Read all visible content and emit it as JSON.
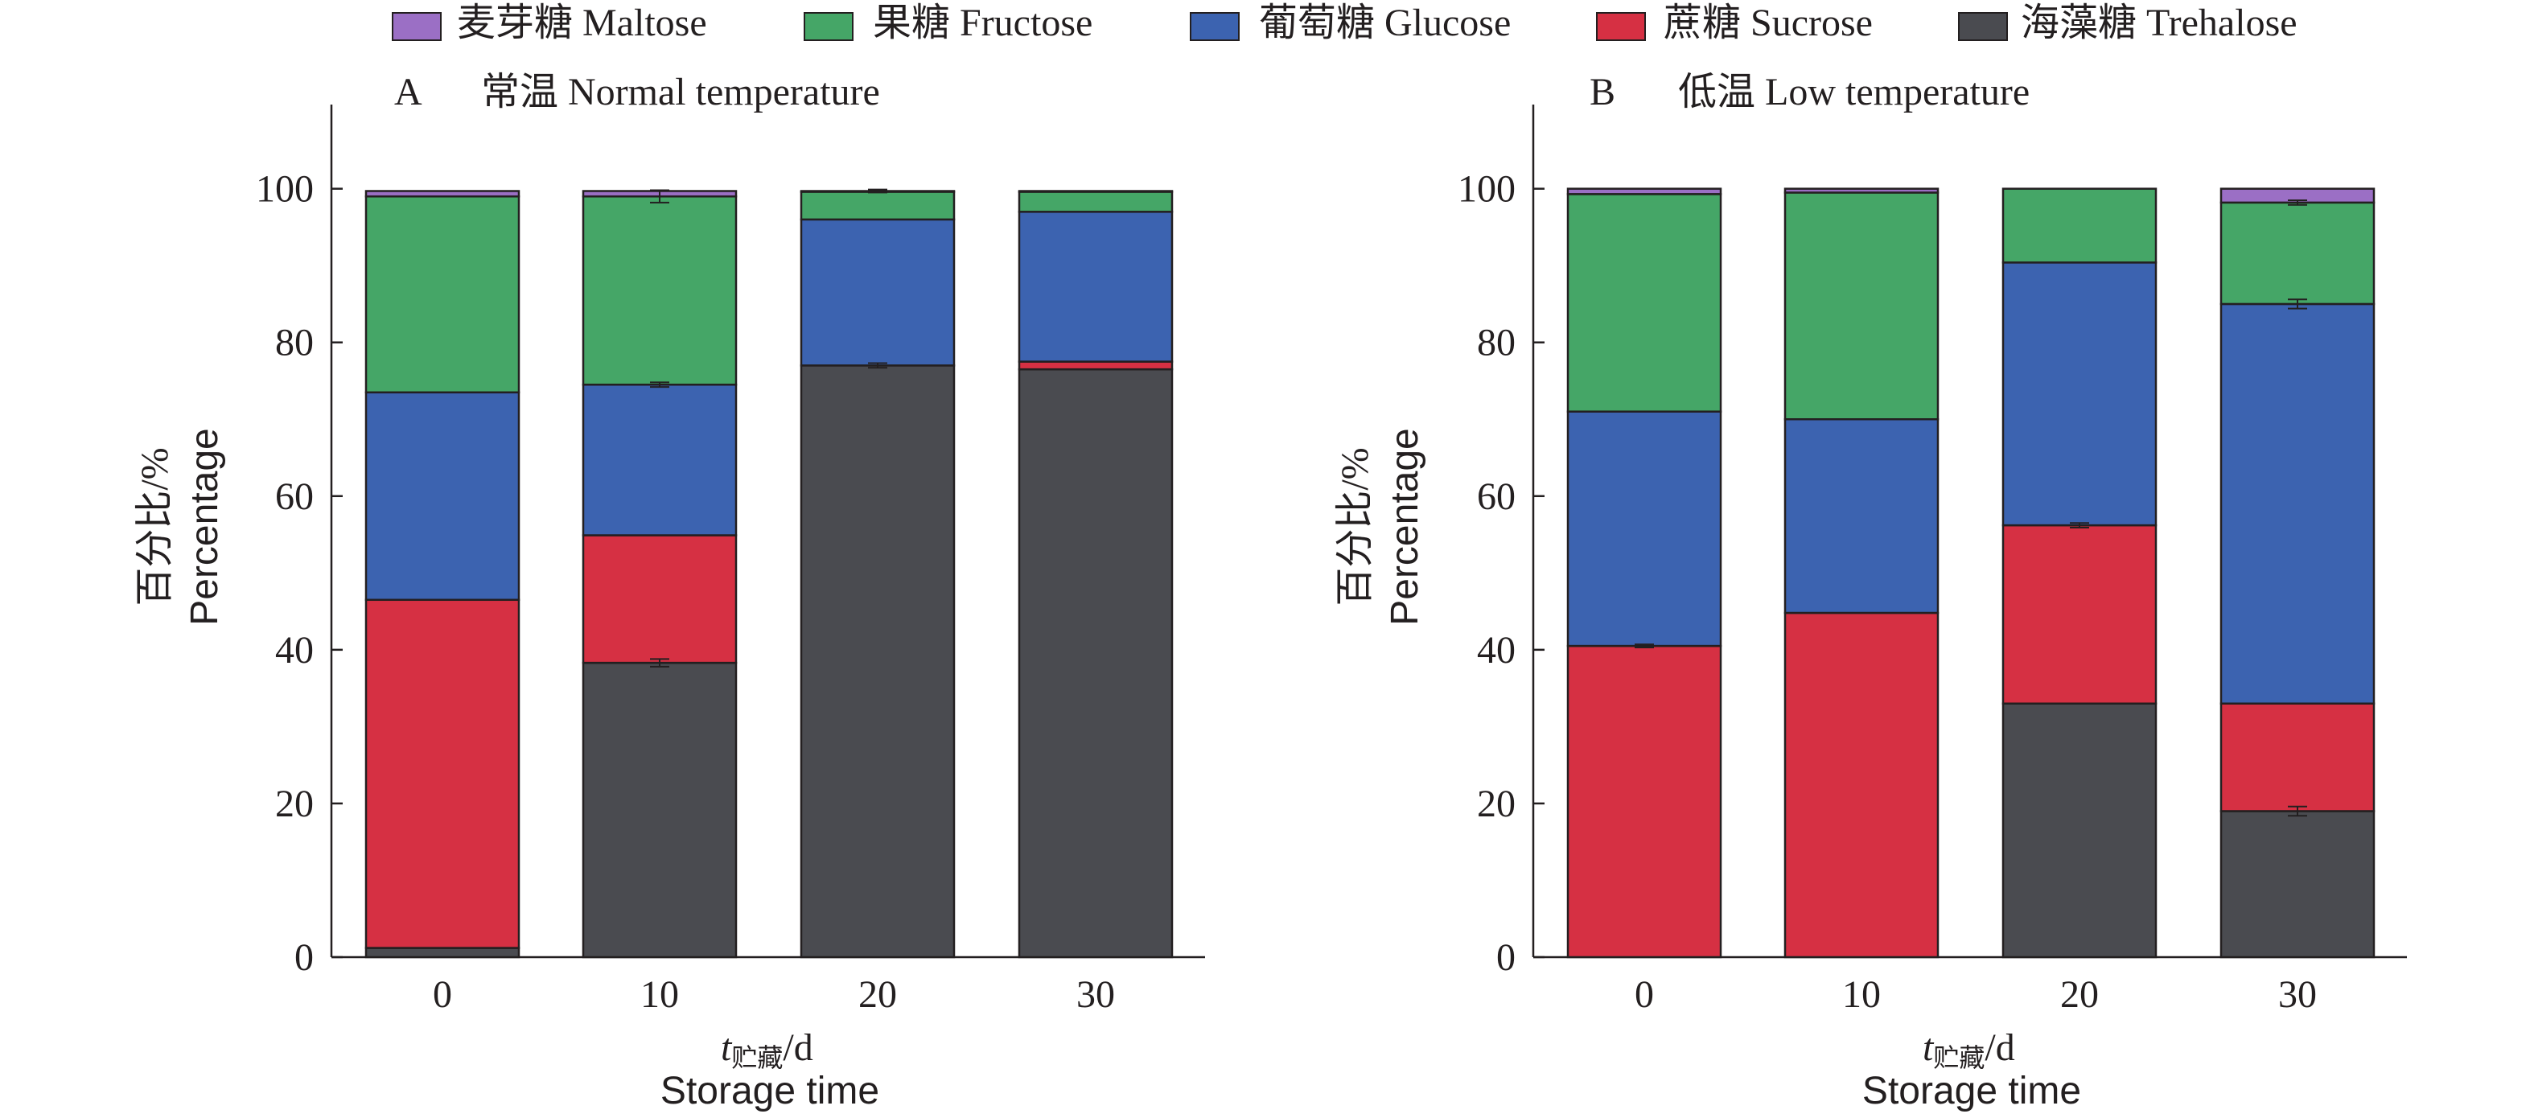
{
  "chart_data": {
    "type": "bar",
    "stacked": true,
    "legend": {
      "placement": "top",
      "entries": [
        {
          "key": "maltose",
          "label": "麦芽糖 Maltose",
          "color": "#9b6fc5"
        },
        {
          "key": "fructose",
          "label": "果糖 Fructose",
          "color": "#45a667"
        },
        {
          "key": "glucose",
          "label": "葡萄糖 Glucose",
          "color": "#3c63b0"
        },
        {
          "key": "sucrose",
          "label": "蔗糖 Sucrose",
          "color": "#d63043"
        },
        {
          "key": "trehalose",
          "label": "海藻糖 Trehalose",
          "color": "#4a4b50"
        }
      ]
    },
    "panels": [
      {
        "panel_letter": "A",
        "title": "常温 Normal temperature",
        "xlabel_var": "t",
        "xlabel_sub": "贮藏",
        "xlabel_unit": "/d",
        "xlabel_en": "Storage time",
        "ylabel_cn": "百分比/%",
        "ylabel_en": "Percentage",
        "ylim": [
          0,
          112
        ],
        "yticks": [
          0,
          20,
          40,
          60,
          80,
          100
        ],
        "categories": [
          "0",
          "10",
          "20",
          "30"
        ],
        "stack_order": [
          "trehalose",
          "sucrose",
          "glucose",
          "fructose",
          "maltose"
        ],
        "series": [
          {
            "key": "trehalose",
            "values": [
              1.2,
              38.3,
              77.0,
              76.5
            ],
            "errors": [
              0,
              0.5,
              0.3,
              0
            ]
          },
          {
            "key": "sucrose",
            "values": [
              45.3,
              16.6,
              0,
              1.0
            ],
            "errors": [
              0,
              0,
              0,
              0
            ]
          },
          {
            "key": "glucose",
            "values": [
              27.0,
              19.6,
              19.0,
              19.5
            ],
            "errors": [
              0,
              0.3,
              0,
              0
            ]
          },
          {
            "key": "fructose",
            "values": [
              25.5,
              24.5,
              3.6,
              2.6
            ],
            "errors": [
              0,
              0.8,
              0,
              0
            ]
          },
          {
            "key": "maltose",
            "values": [
              0.7,
              0.7,
              0.1,
              0.1
            ],
            "errors": [
              0,
              0,
              0.2,
              0
            ]
          }
        ]
      },
      {
        "panel_letter": "B",
        "title": "低温 Low temperature",
        "xlabel_var": "t",
        "xlabel_sub": "贮藏",
        "xlabel_unit": "/d",
        "xlabel_en": "Storage time",
        "ylabel_cn": "百分比/%",
        "ylabel_en": "Percentage",
        "ylim": [
          0,
          112
        ],
        "yticks": [
          0,
          20,
          40,
          60,
          80,
          100
        ],
        "categories": [
          "0",
          "10",
          "20",
          "30"
        ],
        "stack_order": [
          "trehalose",
          "sucrose",
          "glucose",
          "fructose",
          "maltose"
        ],
        "series": [
          {
            "key": "trehalose",
            "values": [
              0,
              0,
              33.0,
              19.0
            ],
            "errors": [
              0,
              0,
              0,
              0.6
            ]
          },
          {
            "key": "sucrose",
            "values": [
              40.5,
              44.8,
              23.2,
              14.0
            ],
            "errors": [
              0.2,
              0,
              0.3,
              0
            ]
          },
          {
            "key": "glucose",
            "values": [
              30.5,
              25.2,
              34.2,
              52.0
            ],
            "errors": [
              0,
              0,
              0,
              0.6
            ]
          },
          {
            "key": "fructose",
            "values": [
              28.3,
              29.5,
              9.6,
              13.2
            ],
            "errors": [
              0,
              0,
              0,
              0.3
            ]
          },
          {
            "key": "maltose",
            "values": [
              0.7,
              0.5,
              0,
              1.8
            ],
            "errors": [
              0,
              0,
              0,
              0
            ]
          }
        ]
      }
    ]
  }
}
